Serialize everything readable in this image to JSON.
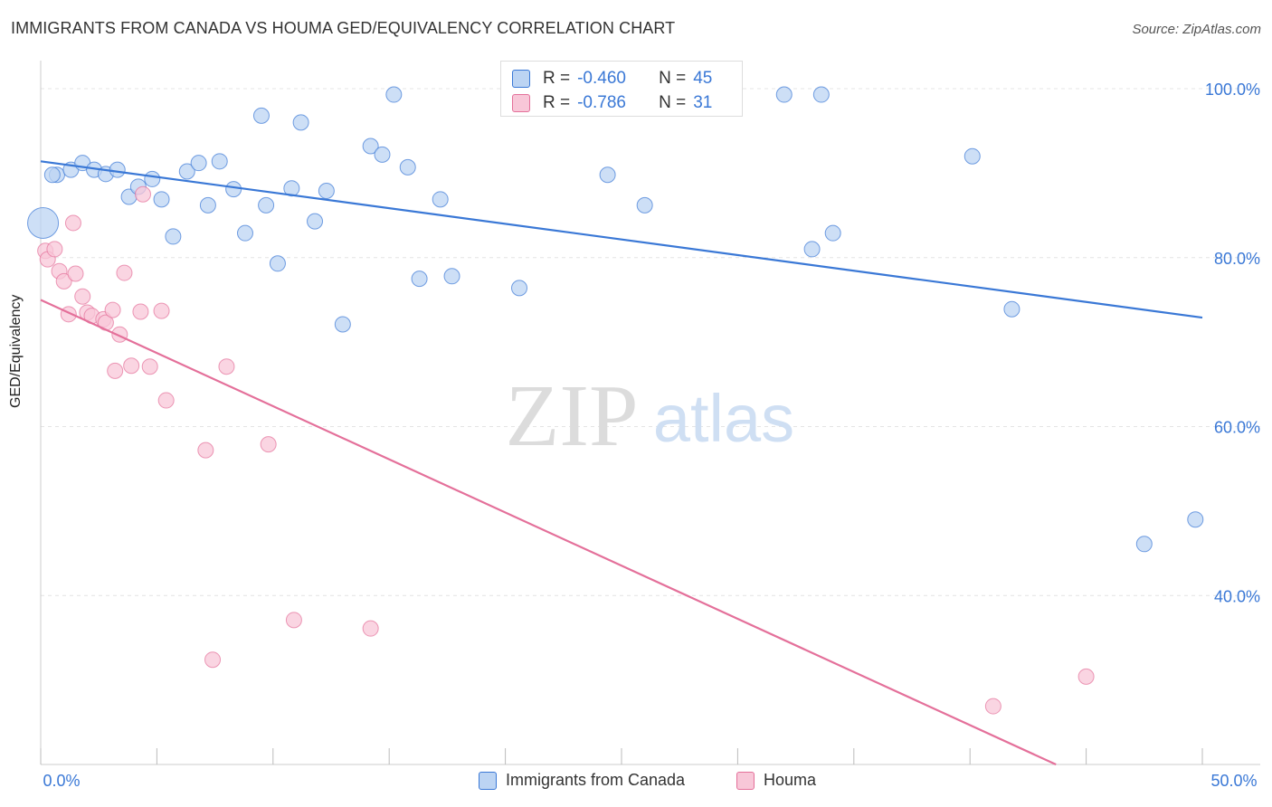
{
  "title": "IMMIGRANTS FROM CANADA VS HOUMA GED/EQUIVALENCY CORRELATION CHART",
  "source": "Source: ZipAtlas.com",
  "watermark": {
    "zip": "ZIP",
    "atlas": "atlas"
  },
  "legend_top": {
    "rows": [
      {
        "r_label": "R =",
        "r_value": "-0.460",
        "n_label": "N =",
        "n_value": "45"
      },
      {
        "r_label": "R =",
        "r_value": "-0.786",
        "n_label": "N =",
        "n_value": "31"
      }
    ]
  },
  "chart_data": {
    "type": "scatter",
    "ylabel": "GED/Equivalency",
    "xlim": [
      0,
      50
    ],
    "ylim": [
      20,
      103
    ],
    "x_tick_labels": [
      "0.0%",
      "50.0%"
    ],
    "y_ticks": [
      100,
      80,
      60,
      40
    ],
    "y_tick_labels": [
      "100.0%",
      "80.0%",
      "60.0%",
      "40.0%"
    ],
    "grid": true,
    "colors": {
      "blue": "#3a78d6",
      "pink": "#e4709a",
      "blue_fill": "#bcd4f3",
      "pink_fill": "#f8c7d8"
    },
    "series": [
      {
        "name": "Immigrants from Canada",
        "color": "#3a78d6",
        "trend": {
          "x": [
            0,
            50
          ],
          "y": [
            91.4,
            72.9
          ]
        },
        "points": [
          {
            "x": 0.1,
            "y": 84.1,
            "big": true
          },
          {
            "x": 0.7,
            "y": 89.8
          },
          {
            "x": 1.3,
            "y": 90.4
          },
          {
            "x": 1.8,
            "y": 91.2
          },
          {
            "x": 2.3,
            "y": 90.4
          },
          {
            "x": 2.8,
            "y": 89.9
          },
          {
            "x": 3.3,
            "y": 90.4
          },
          {
            "x": 3.8,
            "y": 87.2
          },
          {
            "x": 4.2,
            "y": 88.4
          },
          {
            "x": 4.8,
            "y": 89.3
          },
          {
            "x": 5.2,
            "y": 86.9
          },
          {
            "x": 5.7,
            "y": 82.5
          },
          {
            "x": 6.3,
            "y": 90.2
          },
          {
            "x": 6.8,
            "y": 91.2
          },
          {
            "x": 7.2,
            "y": 86.2
          },
          {
            "x": 7.7,
            "y": 91.4
          },
          {
            "x": 8.3,
            "y": 88.1
          },
          {
            "x": 8.8,
            "y": 82.9
          },
          {
            "x": 9.5,
            "y": 96.8
          },
          {
            "x": 9.7,
            "y": 86.2
          },
          {
            "x": 10.2,
            "y": 79.3
          },
          {
            "x": 10.8,
            "y": 88.2
          },
          {
            "x": 11.2,
            "y": 96.0
          },
          {
            "x": 11.8,
            "y": 84.3
          },
          {
            "x": 12.3,
            "y": 87.9
          },
          {
            "x": 13.0,
            "y": 72.1
          },
          {
            "x": 14.2,
            "y": 93.2
          },
          {
            "x": 14.7,
            "y": 92.2
          },
          {
            "x": 15.2,
            "y": 99.3
          },
          {
            "x": 15.8,
            "y": 90.7
          },
          {
            "x": 16.3,
            "y": 77.5
          },
          {
            "x": 17.2,
            "y": 86.9
          },
          {
            "x": 17.7,
            "y": 77.8
          },
          {
            "x": 20.6,
            "y": 76.4
          },
          {
            "x": 24.4,
            "y": 89.8
          },
          {
            "x": 26.0,
            "y": 86.2
          },
          {
            "x": 32.0,
            "y": 99.3
          },
          {
            "x": 33.2,
            "y": 81.0
          },
          {
            "x": 33.6,
            "y": 99.3
          },
          {
            "x": 34.1,
            "y": 82.9
          },
          {
            "x": 40.1,
            "y": 92.0
          },
          {
            "x": 41.8,
            "y": 73.9
          },
          {
            "x": 47.5,
            "y": 46.1
          },
          {
            "x": 49.7,
            "y": 49.0
          },
          {
            "x": 0.5,
            "y": 89.8
          }
        ]
      },
      {
        "name": "Houma",
        "color": "#e4709a",
        "trend": {
          "x": [
            0,
            43.7
          ],
          "y": [
            75.0,
            20.0
          ]
        },
        "points": [
          {
            "x": 0.2,
            "y": 80.8
          },
          {
            "x": 0.3,
            "y": 79.8
          },
          {
            "x": 0.6,
            "y": 81.0
          },
          {
            "x": 0.8,
            "y": 78.4
          },
          {
            "x": 1.0,
            "y": 77.2
          },
          {
            "x": 1.2,
            "y": 73.3
          },
          {
            "x": 1.4,
            "y": 84.1
          },
          {
            "x": 1.5,
            "y": 78.1
          },
          {
            "x": 1.8,
            "y": 75.4
          },
          {
            "x": 2.0,
            "y": 73.5
          },
          {
            "x": 2.2,
            "y": 73.1
          },
          {
            "x": 2.7,
            "y": 72.7
          },
          {
            "x": 2.8,
            "y": 72.3
          },
          {
            "x": 3.1,
            "y": 73.8
          },
          {
            "x": 3.2,
            "y": 66.6
          },
          {
            "x": 3.4,
            "y": 70.9
          },
          {
            "x": 3.6,
            "y": 78.2
          },
          {
            "x": 3.9,
            "y": 67.2
          },
          {
            "x": 4.3,
            "y": 73.6
          },
          {
            "x": 4.4,
            "y": 87.5
          },
          {
            "x": 4.7,
            "y": 67.1
          },
          {
            "x": 5.2,
            "y": 73.7
          },
          {
            "x": 5.4,
            "y": 63.1
          },
          {
            "x": 7.1,
            "y": 57.2
          },
          {
            "x": 7.4,
            "y": 32.4
          },
          {
            "x": 8.0,
            "y": 67.1
          },
          {
            "x": 9.8,
            "y": 57.9
          },
          {
            "x": 10.9,
            "y": 37.1
          },
          {
            "x": 14.2,
            "y": 36.1
          },
          {
            "x": 41.0,
            "y": 26.9
          },
          {
            "x": 45.0,
            "y": 30.4
          }
        ]
      }
    ]
  }
}
